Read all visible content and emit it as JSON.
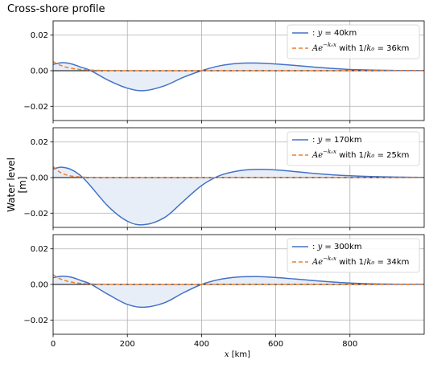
{
  "figure": {
    "title": "Cross-shore profile",
    "ylabel": "Water level [m]",
    "xlabel_var": "x",
    "xlabel_unit": " [km]"
  },
  "chart_data": [
    {
      "type": "line",
      "xlim": [
        0,
        1000
      ],
      "ylim": [
        -0.028,
        0.028
      ],
      "xticks": [
        0,
        200,
        400,
        600,
        800
      ],
      "yticks": [
        -0.02,
        0.0,
        0.02
      ],
      "ytick_labels": [
        "−0.02",
        "0.00",
        "0.02"
      ],
      "xtick_labels": [
        "0",
        "200",
        "400",
        "600",
        "800"
      ],
      "show_xtick_labels": false,
      "grid": true,
      "legend_position": "top-right",
      "fill_under_line": true,
      "colors": {
        "profile": "#4472c4",
        "fit": "#ed7d31",
        "fill": "#e8eef8",
        "zero": "#000000"
      },
      "legend": [
        {
          "pre": ": ",
          "var": "y",
          "eq": " = 40km"
        },
        {
          "pre": "",
          "var": "Ae",
          "sup": "−k₀x",
          "mid": " with 1/",
          "var2": "k₀",
          "eq": " = 36km"
        }
      ],
      "series": [
        {
          "x": [
            0,
            25,
            50,
            75,
            100,
            150,
            200,
            245,
            300,
            350,
            400,
            450,
            500,
            550,
            600,
            650,
            700,
            750,
            800,
            850,
            900,
            950,
            1000
          ],
          "y": [
            0.0036,
            0.0045,
            0.0038,
            0.002,
            0.0002,
            -0.0055,
            -0.0098,
            -0.0112,
            -0.0085,
            -0.0038,
            0.0,
            0.0028,
            0.0041,
            0.0043,
            0.0038,
            0.003,
            0.0021,
            0.0013,
            0.0007,
            0.0004,
            0.0002,
            0.0001,
            0.0001
          ]
        },
        {
          "x": [
            0,
            10,
            20,
            30,
            40,
            50,
            60,
            70,
            80,
            90,
            100,
            120,
            140,
            160,
            180,
            200,
            250,
            300,
            400,
            500,
            600,
            700,
            800,
            900,
            1000
          ],
          "y": [
            0.0052,
            0.0039,
            0.003,
            0.0023,
            0.0017,
            0.0013,
            0.001,
            0.00076,
            0.00058,
            0.00044,
            0.00034,
            0.0002,
            0.00011,
            6e-05,
            3e-05,
            2e-05,
            0,
            0,
            0,
            0,
            0,
            0,
            0,
            0,
            0
          ]
        }
      ]
    },
    {
      "type": "line",
      "xlim": [
        0,
        1000
      ],
      "ylim": [
        -0.028,
        0.028
      ],
      "xticks": [
        0,
        200,
        400,
        600,
        800
      ],
      "yticks": [
        -0.02,
        0.0,
        0.02
      ],
      "ytick_labels": [
        "−0.02",
        "0.00",
        "0.02"
      ],
      "xtick_labels": [
        "0",
        "200",
        "400",
        "600",
        "800"
      ],
      "show_xtick_labels": false,
      "grid": true,
      "legend_position": "top-right",
      "fill_under_line": true,
      "colors": {
        "profile": "#4472c4",
        "fit": "#ed7d31",
        "fill": "#e8eef8",
        "zero": "#000000"
      },
      "legend": [
        {
          "pre": ": ",
          "var": "y",
          "eq": " = 170km"
        },
        {
          "pre": "",
          "var": "Ae",
          "sup": "−k₀x",
          "mid": " with 1/",
          "var2": "k₀",
          "eq": " = 25km"
        }
      ],
      "series": [
        {
          "x": [
            0,
            20,
            40,
            60,
            80,
            100,
            150,
            200,
            245,
            300,
            350,
            400,
            450,
            500,
            550,
            600,
            650,
            700,
            750,
            800,
            850,
            900,
            950,
            1000
          ],
          "y": [
            0.0048,
            0.0058,
            0.0052,
            0.0032,
            0.0,
            -0.0045,
            -0.0165,
            -0.0245,
            -0.0265,
            -0.0225,
            -0.0135,
            -0.0045,
            0.0012,
            0.0038,
            0.0046,
            0.0043,
            0.0034,
            0.0024,
            0.0016,
            0.001,
            0.0006,
            0.0004,
            0.0002,
            0.0001
          ]
        },
        {
          "x": [
            0,
            10,
            20,
            30,
            40,
            50,
            60,
            70,
            80,
            90,
            100,
            120,
            140,
            160,
            180,
            200,
            250,
            300,
            400,
            500,
            600,
            700,
            800,
            900,
            1000
          ],
          "y": [
            0.0062,
            0.0042,
            0.0028,
            0.0019,
            0.0012,
            0.0008,
            0.00055,
            0.00037,
            0.00025,
            0.00017,
            0.00011,
            5e-05,
            2e-05,
            1e-05,
            0,
            0,
            0,
            0,
            0,
            0,
            0,
            0,
            0,
            0,
            0
          ]
        }
      ]
    },
    {
      "type": "line",
      "xlim": [
        0,
        1000
      ],
      "ylim": [
        -0.028,
        0.028
      ],
      "xticks": [
        0,
        200,
        400,
        600,
        800
      ],
      "yticks": [
        -0.02,
        0.0,
        0.02
      ],
      "ytick_labels": [
        "−0.02",
        "0.00",
        "0.02"
      ],
      "xtick_labels": [
        "0",
        "200",
        "400",
        "600",
        "800"
      ],
      "show_xtick_labels": true,
      "grid": true,
      "legend_position": "top-right",
      "fill_under_line": true,
      "colors": {
        "profile": "#4472c4",
        "fit": "#ed7d31",
        "fill": "#e8eef8",
        "zero": "#000000"
      },
      "legend": [
        {
          "pre": ": ",
          "var": "y",
          "eq": " = 300km"
        },
        {
          "pre": "",
          "var": "Ae",
          "sup": "−k₀x",
          "mid": " with 1/",
          "var2": "k₀",
          "eq": " = 34km"
        }
      ],
      "series": [
        {
          "x": [
            0,
            25,
            50,
            75,
            100,
            150,
            200,
            245,
            300,
            350,
            400,
            450,
            500,
            550,
            600,
            650,
            700,
            750,
            800,
            850,
            900,
            950,
            1000
          ],
          "y": [
            0.0038,
            0.0046,
            0.004,
            0.0022,
            0.0003,
            -0.0058,
            -0.0112,
            -0.0128,
            -0.0103,
            -0.0048,
            0.0,
            0.0029,
            0.0042,
            0.0044,
            0.0039,
            0.0031,
            0.0022,
            0.0014,
            0.0008,
            0.0004,
            0.0002,
            0.0001,
            0.0001
          ]
        },
        {
          "x": [
            0,
            10,
            20,
            30,
            40,
            50,
            60,
            70,
            80,
            90,
            100,
            120,
            140,
            160,
            180,
            200,
            250,
            300,
            400,
            500,
            600,
            700,
            800,
            900,
            1000
          ],
          "y": [
            0.0055,
            0.0041,
            0.003,
            0.0023,
            0.0017,
            0.0013,
            0.00094,
            0.0007,
            0.00053,
            0.0004,
            0.0003,
            0.00016,
            9e-05,
            5e-05,
            3e-05,
            1e-05,
            0,
            0,
            0,
            0,
            0,
            0,
            0,
            0,
            0
          ]
        }
      ]
    }
  ]
}
